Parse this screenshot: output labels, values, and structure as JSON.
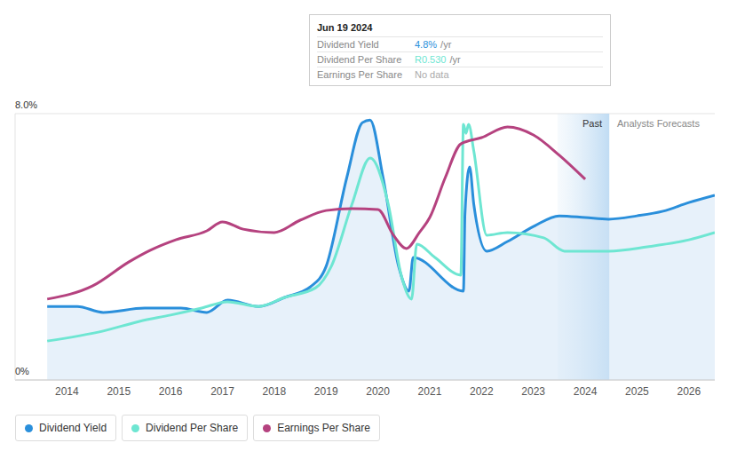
{
  "chart_data": {
    "type": "line",
    "xlim": [
      2013,
      2026.5
    ],
    "xticks": [
      2014,
      2015,
      2016,
      2017,
      2018,
      2019,
      2020,
      2021,
      2022,
      2023,
      2024,
      2025,
      2026
    ],
    "ylim": [
      0,
      8
    ],
    "yticks": [
      {
        "value": 0,
        "label": "0%"
      },
      {
        "value": 8,
        "label": "8.0%"
      }
    ],
    "grid": true,
    "annotations": [
      "Past",
      "Analysts Forecasts"
    ],
    "tooltip": {
      "date": "Jun 19 2024",
      "rows": [
        {
          "label": "Dividend Yield",
          "value": "4.8%",
          "unit": "/yr"
        },
        {
          "label": "Dividend Per Share",
          "value": "R0.530",
          "unit": "/yr"
        },
        {
          "label": "Earnings Per Share",
          "value": "No data"
        }
      ]
    },
    "series": [
      {
        "name": "Dividend Yield",
        "color": "#2a8fdb",
        "type": "area",
        "x": [
          2013.62,
          2014.2,
          2014.7,
          2015.5,
          2016.2,
          2016.7,
          2017.1,
          2017.7,
          2018.2,
          2018.7,
          2019.0,
          2019.4,
          2019.7,
          2019.85,
          2020.1,
          2020.4,
          2020.6,
          2020.68,
          2021.65,
          2021.68,
          2021.77,
          2021.85,
          2022.1,
          2022.5,
          2023.0,
          2023.5,
          2024.0,
          2024.45,
          2025.0,
          2025.5,
          2026.0,
          2026.5
        ],
        "values": [
          2.21,
          2.21,
          2.03,
          2.16,
          2.16,
          2.03,
          2.4,
          2.21,
          2.48,
          2.8,
          3.41,
          6.08,
          7.73,
          7.81,
          6.08,
          3.41,
          2.67,
          3.68,
          2.67,
          5.0,
          6.4,
          5.28,
          3.87,
          4.16,
          4.61,
          4.93,
          4.88,
          4.83,
          4.93,
          5.07,
          5.33,
          5.55
        ]
      },
      {
        "name": "Dividend Per Share",
        "color": "#6ee6d2",
        "type": "line",
        "x": [
          2013.62,
          2014.7,
          2015.4,
          2016.0,
          2016.6,
          2017.1,
          2017.7,
          2018.2,
          2018.8,
          2019.1,
          2019.5,
          2019.85,
          2020.2,
          2020.45,
          2020.65,
          2020.75,
          2021.1,
          2021.6,
          2021.65,
          2021.7,
          2021.75,
          2021.85,
          2022.1,
          2022.5,
          2023.2,
          2023.6,
          2024.45,
          2025.2,
          2026.0,
          2026.5
        ],
        "values": [
          1.17,
          1.47,
          1.76,
          1.95,
          2.16,
          2.35,
          2.21,
          2.48,
          2.77,
          3.41,
          5.28,
          6.67,
          5.28,
          3.15,
          2.43,
          4.08,
          3.68,
          3.15,
          7.68,
          7.41,
          7.68,
          6.88,
          4.35,
          4.43,
          4.27,
          3.87,
          3.87,
          4.0,
          4.21,
          4.43
        ]
      },
      {
        "name": "Earnings Per Share",
        "color": "#b5427f",
        "type": "line",
        "x": [
          2013.62,
          2014.5,
          2015.2,
          2015.6,
          2016.1,
          2016.7,
          2017.0,
          2017.4,
          2018.0,
          2018.5,
          2019.0,
          2019.5,
          2020.0,
          2020.3,
          2020.55,
          2020.8,
          2021.0,
          2021.3,
          2021.6,
          2022.0,
          2022.5,
          2023.0,
          2023.5,
          2024.0
        ],
        "values": [
          2.43,
          2.83,
          3.55,
          3.89,
          4.21,
          4.48,
          4.75,
          4.53,
          4.43,
          4.8,
          5.09,
          5.15,
          5.12,
          4.35,
          3.95,
          4.43,
          4.88,
          6.08,
          7.09,
          7.28,
          7.6,
          7.36,
          6.75,
          6.03
        ]
      }
    ]
  }
}
